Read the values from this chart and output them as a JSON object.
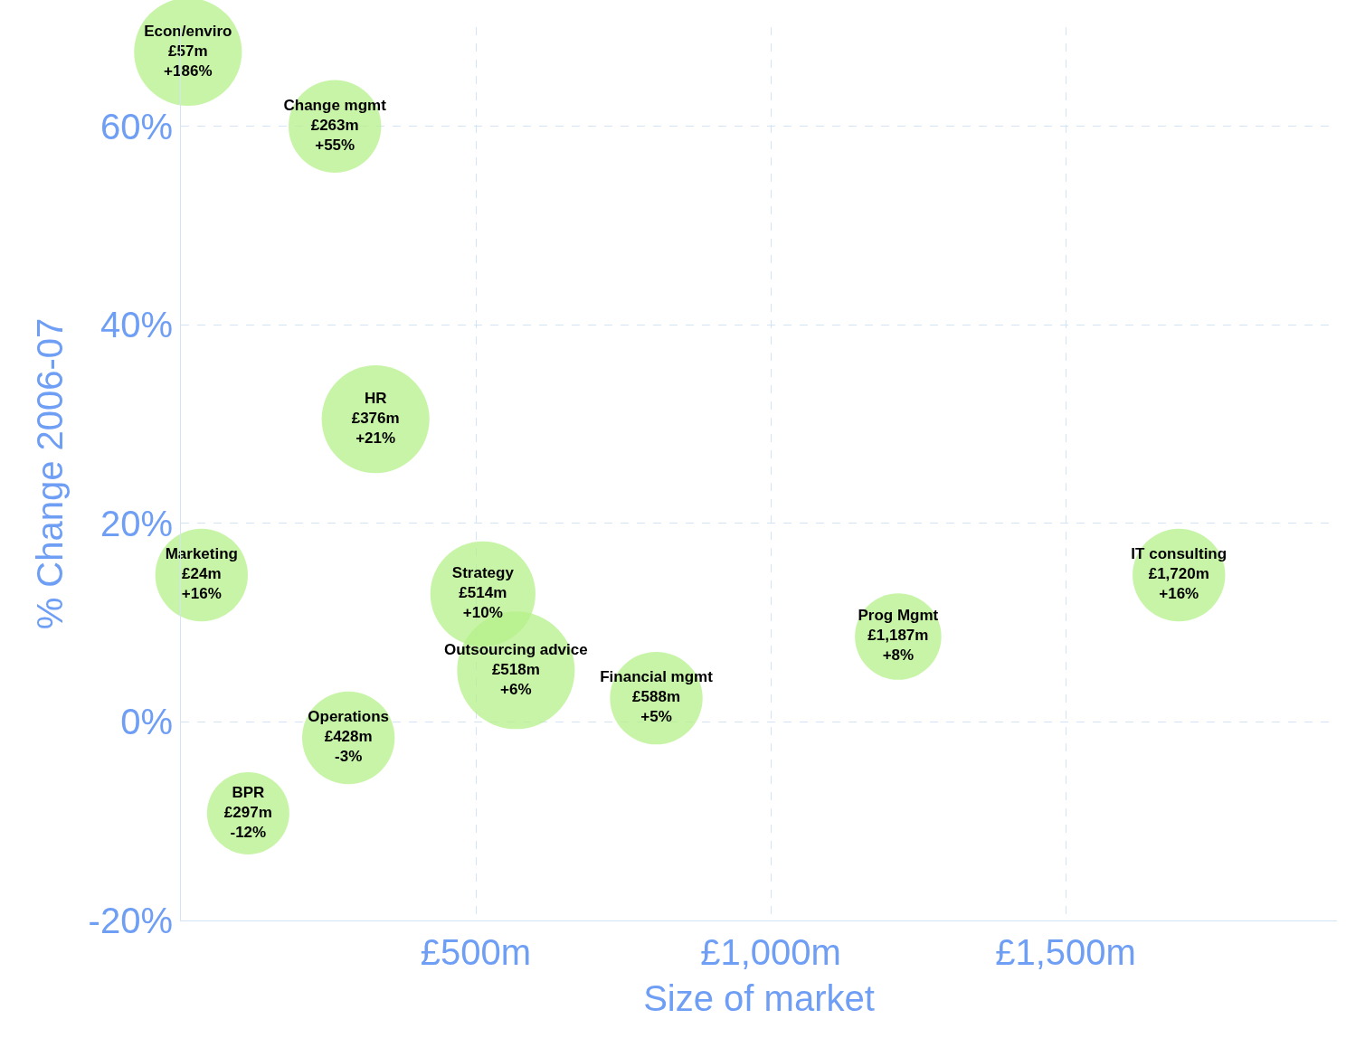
{
  "chart_data": {
    "type": "bubble",
    "xlabel": "Size of market",
    "ylabel": "% Change 2006-07",
    "x": [
      12,
      261,
      330,
      35,
      512,
      568,
      806,
      284,
      114,
      1216,
      1692
    ],
    "values": [
      67.5,
      60,
      30.5,
      14.8,
      12.9,
      5.2,
      2.4,
      -1.6,
      -9.2,
      8.6,
      14.8
    ],
    "sizes": [
      0.84,
      0.62,
      0.84,
      0.62,
      0.8,
      1,
      0.62,
      0.62,
      0.49,
      0.54,
      0.62
    ],
    "value_labels": [
      "Econ/enviro\n£57m\n+186%",
      "Change mgmt\n£263m\n+55%",
      "HR\n£376m\n+21%",
      "Marketing\n£24m\n+16%",
      "Strategy\n£514m\n+10%",
      "Outsourcing advice\n£518m\n+6%",
      "Financial mgmt\n£588m\n+5%",
      "Operations\n£428m\n-3%",
      "BPR\n£297m\n-12%",
      "Prog Mgmt\n£1,187m\n+8%",
      "IT consulting\n£1,720m\n+16%"
    ],
    "color": "#b6f08a",
    "xlim": [
      0,
      1960
    ],
    "ylim": [
      -20,
      70
    ],
    "xticks": [
      {
        "value": 500,
        "label": "£500m"
      },
      {
        "value": 1000,
        "label": "£1,000m"
      },
      {
        "value": 1500,
        "label": "£1,500m"
      }
    ],
    "yticks": [
      {
        "value": -20,
        "label": "-20%"
      },
      {
        "value": 0,
        "label": "0%"
      },
      {
        "value": 20,
        "label": "20%"
      },
      {
        "value": 40,
        "label": "40%"
      },
      {
        "value": 60,
        "label": "60%"
      }
    ],
    "grid": true,
    "marker": "circle"
  }
}
